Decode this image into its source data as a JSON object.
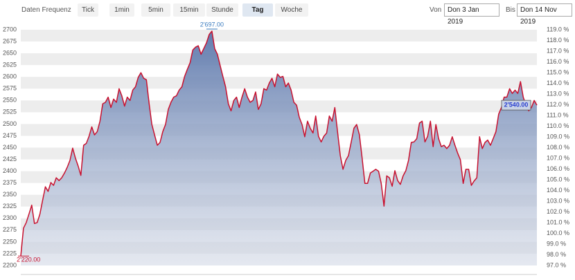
{
  "toolbar": {
    "label": "Daten Frequenz",
    "buttons": [
      "Tick",
      "1min",
      "5min",
      "15min",
      "Stunde",
      "Tag",
      "Woche"
    ],
    "active": "Tag",
    "from_label": "Von",
    "from": "Don 3 Jan 2019",
    "to_label": "Bis",
    "to": "Don 14 Nov 2019"
  },
  "chart_data": {
    "type": "area",
    "series": [
      {
        "color": "#c8102e",
        "values": [
          2220,
          2279,
          2291,
          2309,
          2328,
          2289,
          2291,
          2309,
          2338,
          2367,
          2357,
          2376,
          2370,
          2386,
          2380,
          2386,
          2396,
          2408,
          2423,
          2449,
          2428,
          2411,
          2391,
          2455,
          2459,
          2474,
          2494,
          2477,
          2484,
          2506,
          2543,
          2546,
          2557,
          2535,
          2553,
          2546,
          2575,
          2560,
          2538,
          2557,
          2550,
          2572,
          2579,
          2599,
          2609,
          2597,
          2594,
          2543,
          2499,
          2477,
          2455,
          2461,
          2484,
          2499,
          2531,
          2546,
          2557,
          2560,
          2572,
          2579,
          2601,
          2616,
          2630,
          2657,
          2663,
          2666,
          2648,
          2660,
          2672,
          2690,
          2697,
          2660,
          2648,
          2624,
          2601,
          2579,
          2543,
          2528,
          2550,
          2557,
          2535,
          2557,
          2575,
          2557,
          2546,
          2550,
          2568,
          2531,
          2543,
          2575,
          2572,
          2587,
          2597,
          2579,
          2606,
          2599,
          2601,
          2579,
          2587,
          2572,
          2546,
          2540,
          2514,
          2499,
          2473,
          2506,
          2491,
          2481,
          2517,
          2474,
          2462,
          2474,
          2481,
          2517,
          2506,
          2535,
          2484,
          2433,
          2404,
          2423,
          2433,
          2462,
          2491,
          2499,
          2477,
          2428,
          2374,
          2374,
          2396,
          2400,
          2404,
          2400,
          2374,
          2326,
          2390,
          2386,
          2368,
          2401,
          2380,
          2372,
          2390,
          2401,
          2423,
          2461,
          2462,
          2469,
          2502,
          2506,
          2462,
          2474,
          2506,
          2452,
          2499,
          2469,
          2452,
          2455,
          2448,
          2455,
          2473,
          2455,
          2438,
          2424,
          2374,
          2404,
          2404,
          2370,
          2379,
          2386,
          2473,
          2448,
          2461,
          2466,
          2455,
          2469,
          2484,
          2521,
          2535,
          2557,
          2557,
          2575,
          2565,
          2572,
          2565,
          2590,
          2557,
          2540,
          2528,
          2535,
          2550,
          2540
        ]
      }
    ],
    "ylim": [
      2200,
      2700
    ],
    "yticks": [
      2200,
      2225,
      2250,
      2275,
      2300,
      2325,
      2350,
      2375,
      2400,
      2425,
      2450,
      2475,
      2500,
      2525,
      2550,
      2575,
      2600,
      2625,
      2650,
      2675,
      2700
    ],
    "y2lim": [
      97,
      119
    ],
    "y2ticks": [
      {
        "value": 97,
        "label": "97.0 %"
      },
      {
        "value": 98,
        "label": "98.0 %"
      },
      {
        "value": 99,
        "label": "99.0 %"
      },
      {
        "value": 100,
        "label": "100.0 %"
      },
      {
        "value": 101,
        "label": "101.0 %"
      },
      {
        "value": 102,
        "label": "102.0 %"
      },
      {
        "value": 103,
        "label": "103.0 %"
      },
      {
        "value": 104,
        "label": "104.0 %"
      },
      {
        "value": 105,
        "label": "105.0 %"
      },
      {
        "value": 106,
        "label": "106.0 %"
      },
      {
        "value": 107,
        "label": "107.0 %"
      },
      {
        "value": 108,
        "label": "108.0 %"
      },
      {
        "value": 109,
        "label": "109.0 %"
      },
      {
        "value": 110,
        "label": "110.0 %"
      },
      {
        "value": 111,
        "label": "111.0 %"
      },
      {
        "value": 112,
        "label": "112.0 %"
      },
      {
        "value": 113,
        "label": "113.0 %"
      },
      {
        "value": 114,
        "label": "114.0 %"
      },
      {
        "value": 115,
        "label": "115.0 %"
      },
      {
        "value": 116,
        "label": "116.0 %"
      },
      {
        "value": 117,
        "label": "117.0 %"
      },
      {
        "value": 118,
        "label": "118.0 %"
      },
      {
        "value": 119,
        "label": "119.0 %"
      }
    ],
    "grid": "bands",
    "annotations": {
      "max": {
        "value": 2697,
        "label": "2'697.00"
      },
      "min": {
        "value": 2220,
        "label": "2'220.00"
      },
      "last": {
        "value": 2540,
        "label": "2'540.00"
      }
    }
  }
}
